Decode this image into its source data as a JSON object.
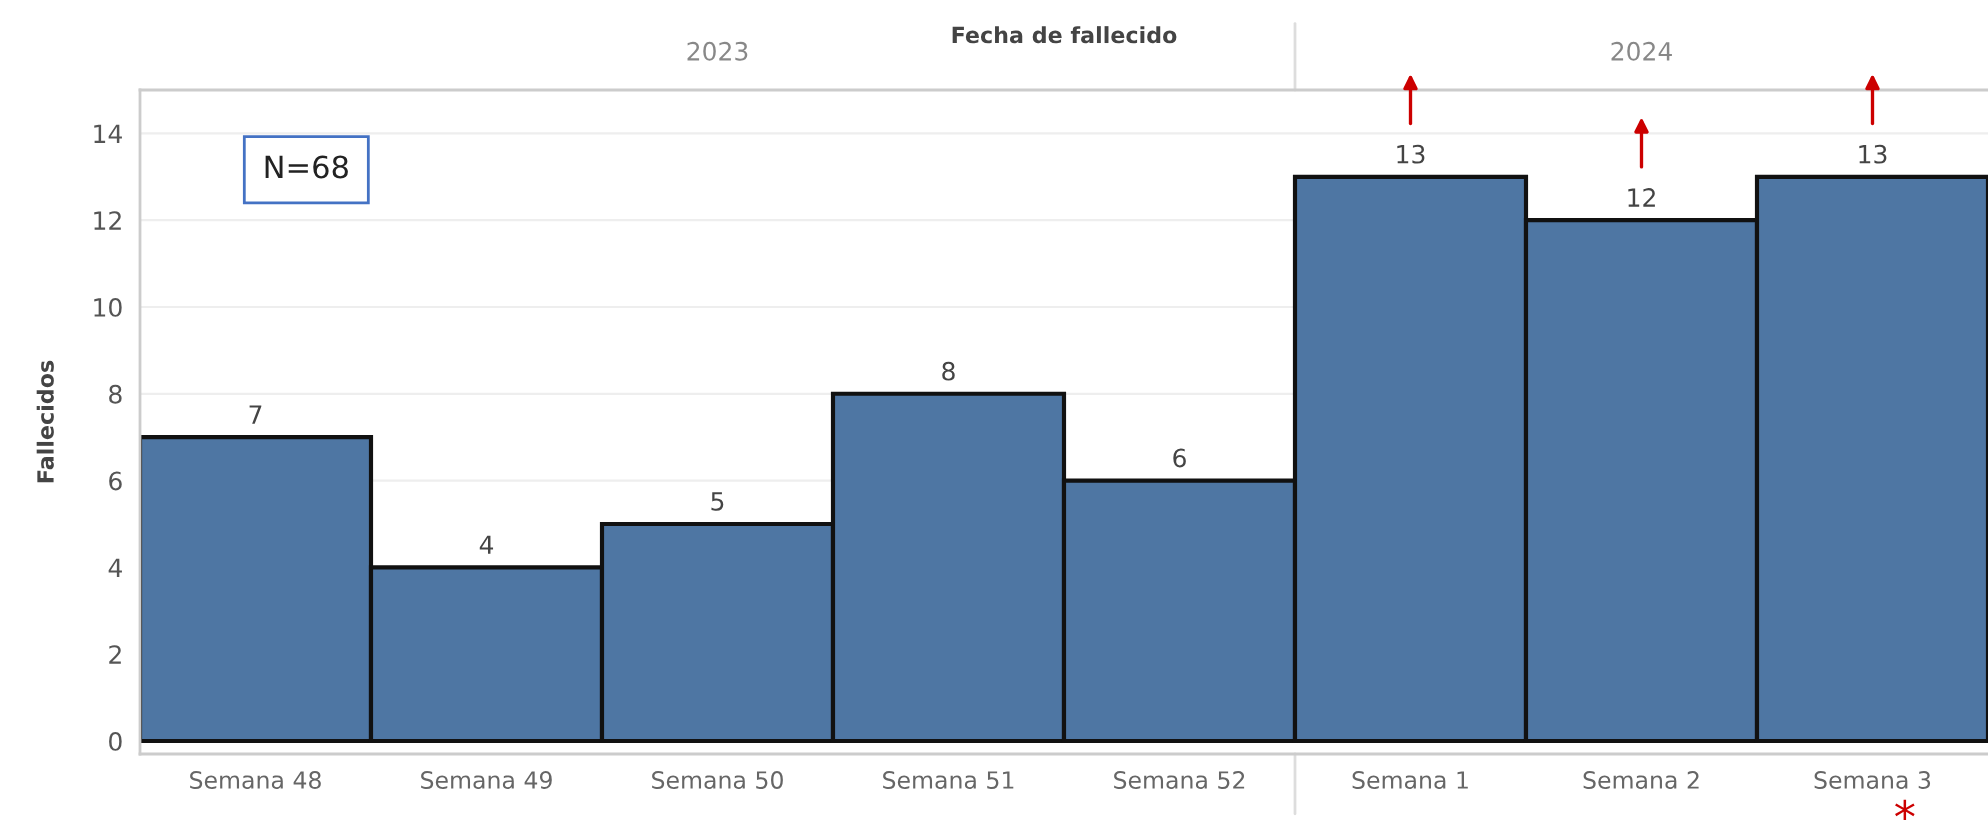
{
  "chart_data": {
    "type": "bar",
    "title": "Fecha de fallecido",
    "ylabel": "Fallecidos",
    "categories": [
      "Semana 48",
      "Semana 49",
      "Semana 50",
      "Semana 51",
      "Semana 52",
      "Semana 1",
      "Semana 2",
      "Semana 3"
    ],
    "values": [
      7,
      4,
      5,
      8,
      6,
      13,
      12,
      13
    ],
    "color": "#4e76a3",
    "ylim": [
      -0.3,
      15
    ],
    "yticks": [
      0,
      2,
      4,
      6,
      8,
      10,
      12,
      14
    ],
    "grid": "y",
    "data_labels": true,
    "annotations": [
      "2023",
      "2024",
      "N=68",
      "*"
    ]
  }
}
